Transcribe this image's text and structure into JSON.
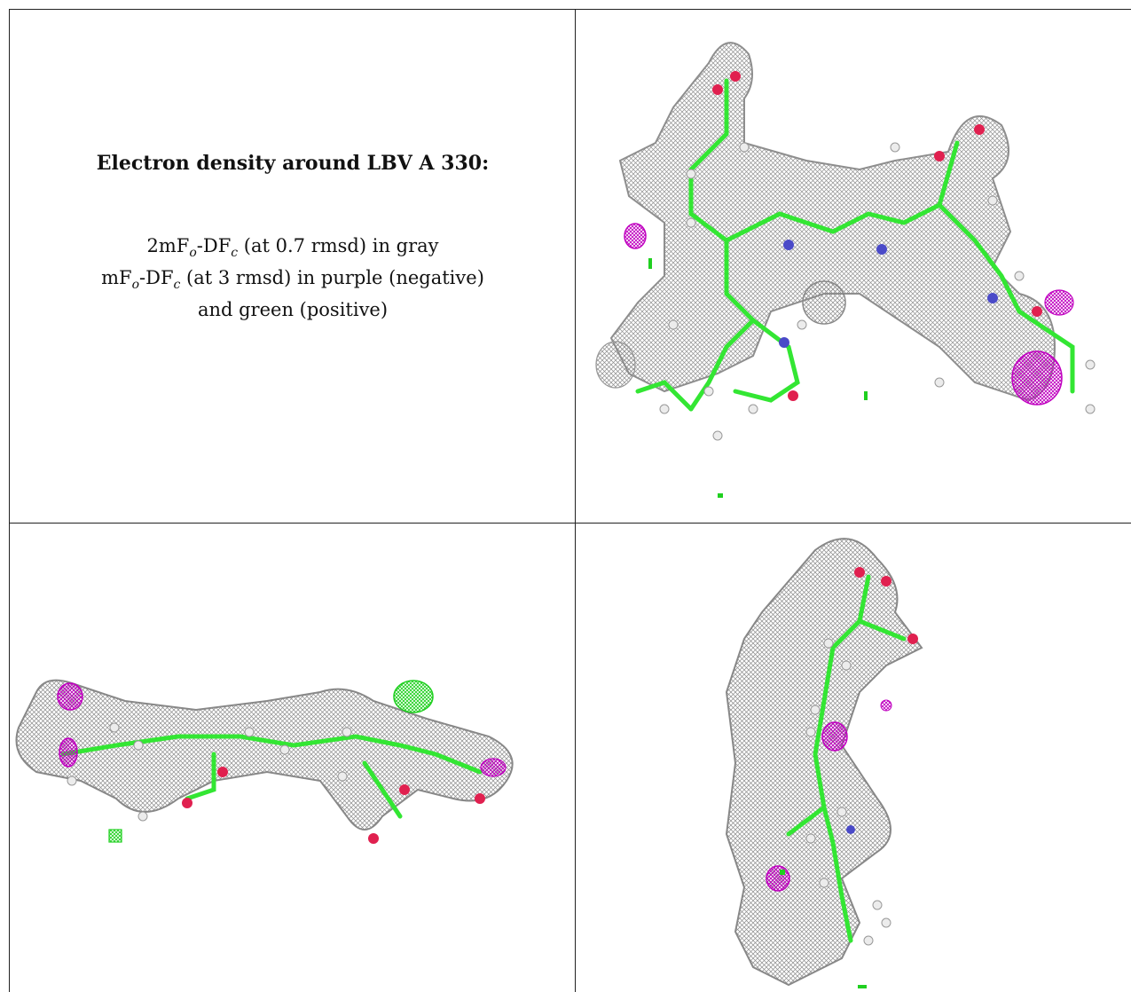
{
  "caption": {
    "title": "Electron density around LBV A 330:",
    "line1": {
      "pre": "2mF",
      "sub1": "o",
      "mid": "-DF",
      "sub2": "c",
      "post": " (at 0.7 rmsd) in gray"
    },
    "line2": {
      "pre": "mF",
      "sub1": "o",
      "mid": "-DF",
      "sub2": "c",
      "post": " (at 3 rmsd) in purple (negative)"
    },
    "line3": "and green (positive)"
  },
  "colors": {
    "density_mesh": "#8a8a8a",
    "bonds": "#33e633",
    "oxygen": "#e0204f",
    "nitrogen": "#4a4ac8",
    "hydrogen": "#e8e8e8",
    "negative": "#c000c0",
    "positive": "#20d020"
  },
  "panels": [
    {
      "id": "top-right",
      "view": "front view of LBV ligand density"
    },
    {
      "id": "bottom-left",
      "view": "edge-on side view of LBV ligand density"
    },
    {
      "id": "bottom-right",
      "view": "end-on rotated view of LBV ligand density"
    }
  ]
}
